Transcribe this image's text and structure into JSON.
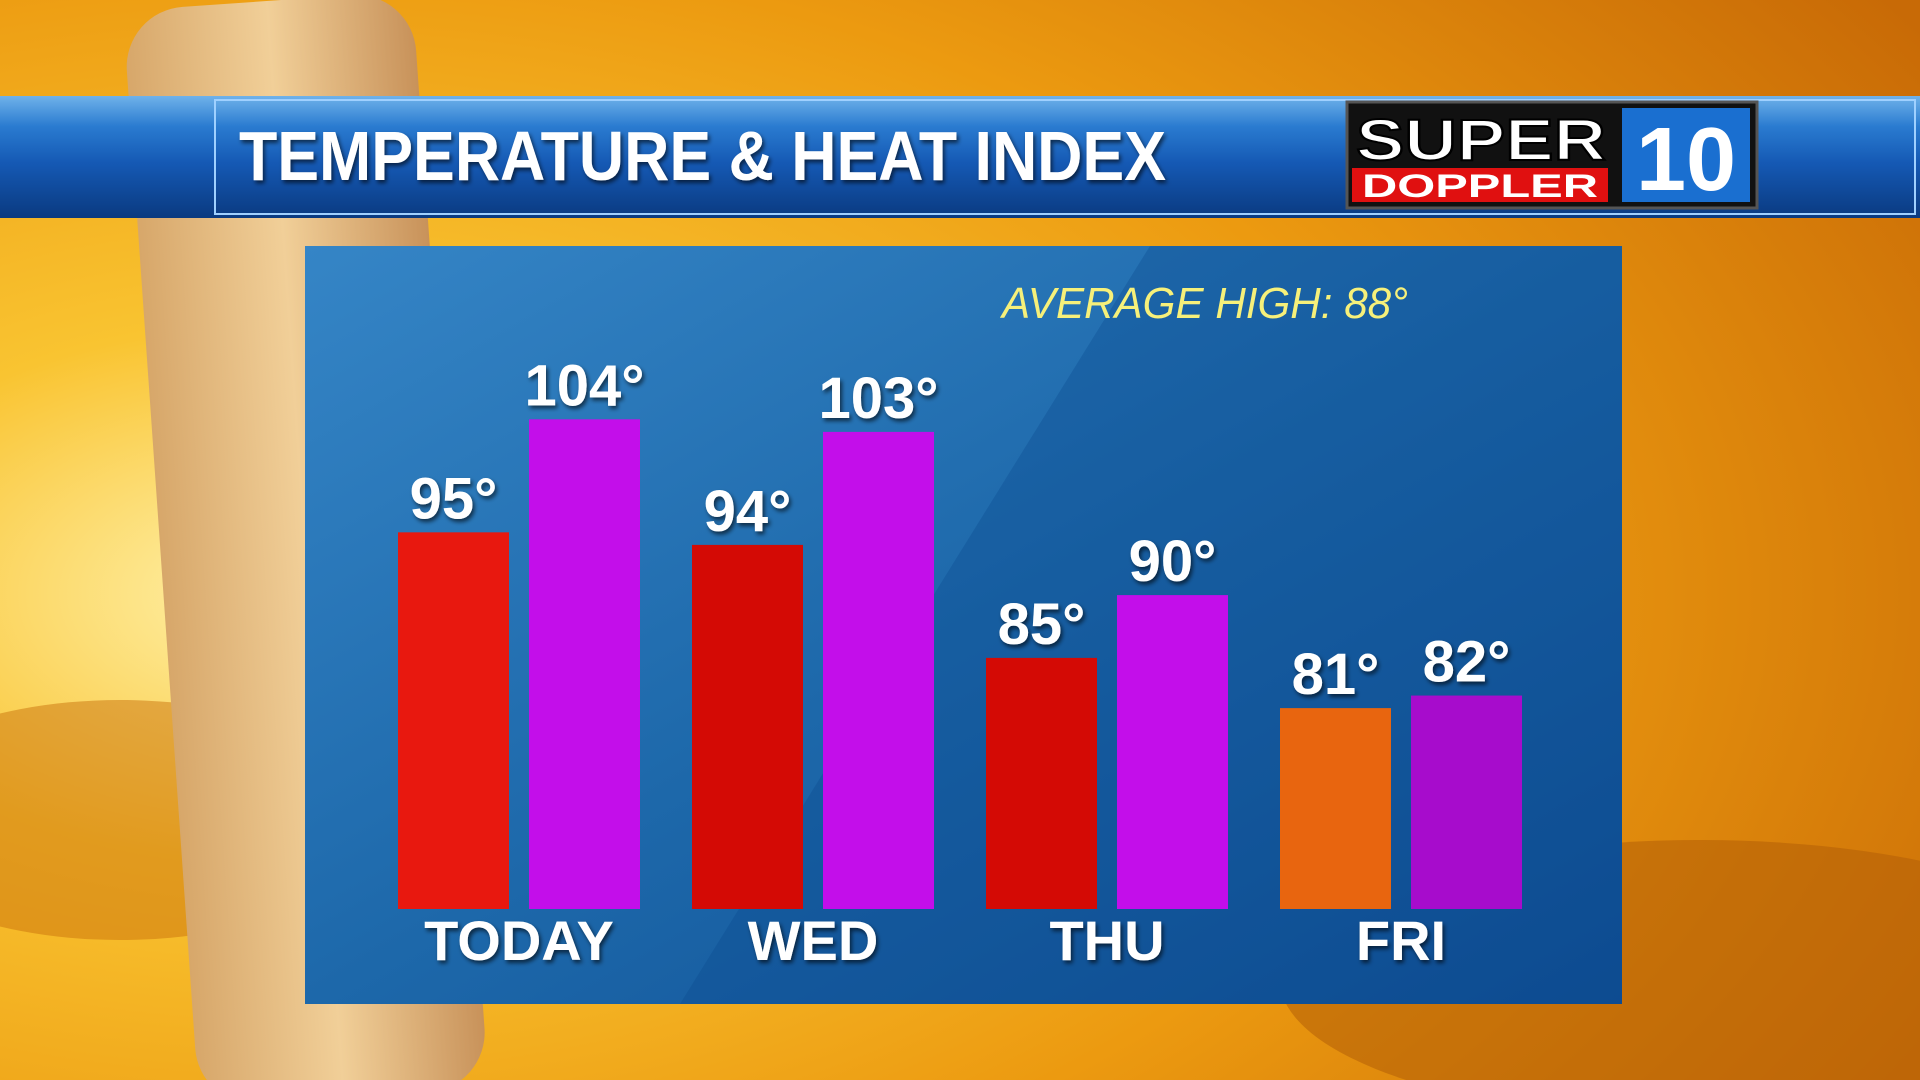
{
  "chart_data": {
    "type": "bar",
    "title": "TEMPERATURE & HEAT INDEX",
    "annotation": "AVERAGE HIGH: 88°",
    "logo": {
      "top": "SUPER",
      "bottom": "DOPPLER",
      "badge": "10"
    },
    "categories": [
      "TODAY",
      "WED",
      "THU",
      "FRI"
    ],
    "series": [
      {
        "values": [
          95,
          94,
          85,
          81
        ],
        "value_labels": [
          "95°",
          "94°",
          "85°",
          "81°"
        ],
        "colors": [
          "#e8180f",
          "#d40a05",
          "#d40a05",
          "#e8650f"
        ]
      },
      {
        "values": [
          104,
          103,
          90,
          82
        ],
        "value_labels": [
          "104°",
          "103°",
          "90°",
          "82°"
        ],
        "colors": [
          "#c30eea",
          "#c30eea",
          "#c30eea",
          "#a70ccc"
        ]
      }
    ],
    "ylim": [
      65,
      110
    ]
  }
}
